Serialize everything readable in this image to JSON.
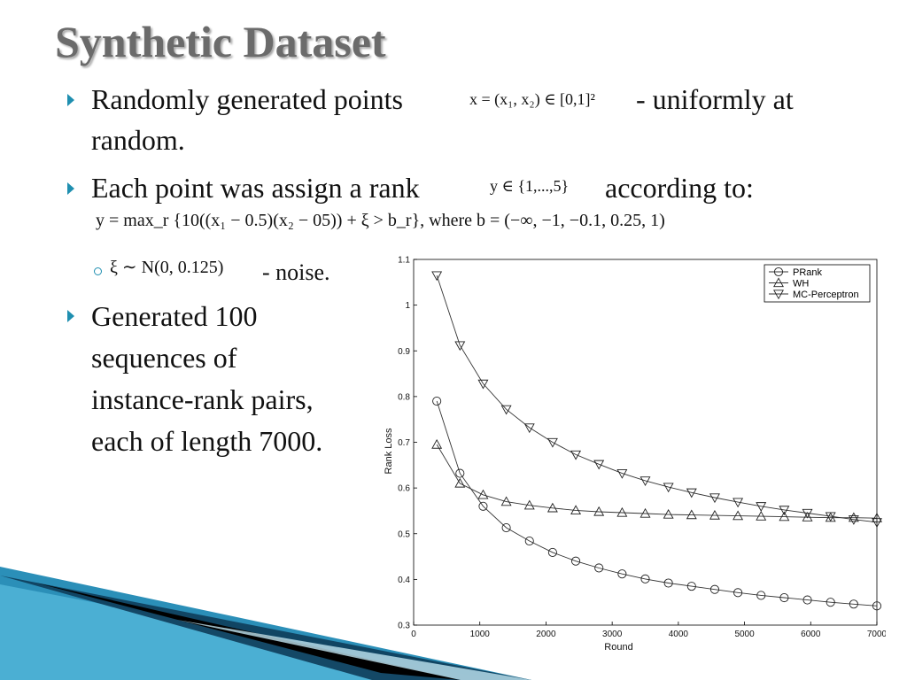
{
  "slide": {
    "title": "Synthetic Dataset",
    "bullet1_text": "Randomly generated points",
    "bullet1_math": "x = (x₁, x₂) ∈ [0,1]²",
    "bullet1_tail": "- uniformly at",
    "bullet1_line2": "random.",
    "bullet2_text": "Each point was assign a rank",
    "bullet2_math": "y ∈ {1,...,5}",
    "bullet2_tail": "according to:",
    "equation": "y = max_r {10((x₁ − 0.5)(x₂ − 05)) + ξ > b_r},  where b = (−∞, −1, −0.1, 0.25, 1)",
    "sub_math": "ξ ∼ N(0, 0.125)",
    "sub_tail": "- noise.",
    "bullet3_lines": [
      "Generated 100",
      "sequences of",
      "instance-rank pairs,",
      "each of length 7000."
    ],
    "accent_color": "#1f8fb0"
  },
  "chart_data": {
    "type": "line",
    "xlabel": "Round",
    "ylabel": "Rank Loss",
    "xlim": [
      0,
      7000
    ],
    "ylim": [
      0.3,
      1.1
    ],
    "xticks": [
      0,
      1000,
      2000,
      3000,
      4000,
      5000,
      6000,
      7000
    ],
    "yticks": [
      0.3,
      0.4,
      0.5,
      0.6,
      0.7,
      0.8,
      0.9,
      1,
      1.1
    ],
    "legend_position": "top-right",
    "x": [
      350,
      700,
      1050,
      1400,
      1750,
      2100,
      2450,
      2800,
      3150,
      3500,
      3850,
      4200,
      4550,
      4900,
      5250,
      5600,
      5950,
      6300,
      6650,
      7000
    ],
    "series": [
      {
        "name": "PRank",
        "marker": "circle",
        "values": [
          0.79,
          0.632,
          0.56,
          0.513,
          0.484,
          0.459,
          0.44,
          0.425,
          0.412,
          0.401,
          0.392,
          0.385,
          0.378,
          0.371,
          0.365,
          0.36,
          0.355,
          0.35,
          0.346,
          0.342
        ]
      },
      {
        "name": "WH",
        "marker": "triangle-up",
        "values": [
          0.695,
          0.61,
          0.585,
          0.57,
          0.562,
          0.556,
          0.551,
          0.548,
          0.546,
          0.544,
          0.542,
          0.541,
          0.54,
          0.539,
          0.538,
          0.537,
          0.536,
          0.535,
          0.535,
          0.534
        ]
      },
      {
        "name": "MC-Perceptron",
        "marker": "triangle-down",
        "values": [
          1.065,
          0.912,
          0.828,
          0.772,
          0.732,
          0.7,
          0.673,
          0.652,
          0.632,
          0.616,
          0.602,
          0.59,
          0.579,
          0.569,
          0.56,
          0.552,
          0.545,
          0.538,
          0.531,
          0.525
        ]
      }
    ]
  }
}
